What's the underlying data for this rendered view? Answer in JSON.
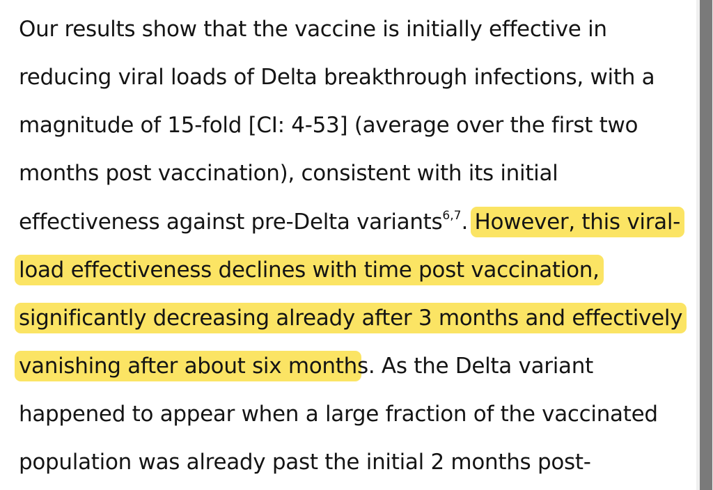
{
  "paragraph": {
    "line1": "Our results show that the vaccine is initially effective in",
    "line2": "reducing viral loads of Delta breakthrough infections, with a",
    "line3": "magnitude of 15-fold [CI: 4-53] (average over the first two",
    "line4": "months post vaccination), consistent with its initial",
    "line5_text": "effectiveness against pre-Delta variants",
    "line5_citation": "6,7",
    "line5_period": ". ",
    "line5_highlight": "However, this viral-",
    "line6_highlight": "load effectiveness declines with time post vaccination,",
    "line7_highlight": "significantly decreasing already after 3 months and effectively",
    "line8_highlight": "vanishing after about six month",
    "line8_rest": "s. As the Delta variant",
    "line9": "happened to appear when a large fraction of the vaccinated",
    "line10": "population was already past the initial 2 months post-"
  },
  "colors": {
    "highlight": "#fbe464",
    "text": "#141414",
    "scrollbar_thumb": "#7a7a7a"
  }
}
